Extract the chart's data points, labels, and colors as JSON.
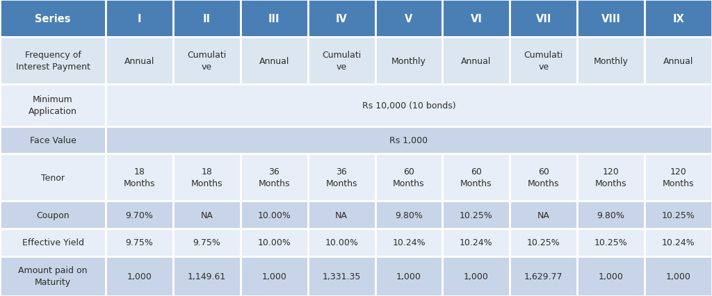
{
  "header_row": [
    "Series",
    "I",
    "II",
    "III",
    "IV",
    "V",
    "VI",
    "VII",
    "VIII",
    "IX"
  ],
  "rows": [
    {
      "label": "Frequency of\nInterest Payment",
      "values": [
        "Annual",
        "Cumulati\nve",
        "Annual",
        "Cumulati\nve",
        "Monthly",
        "Annual",
        "Cumulati\nve",
        "Monthly",
        "Annual"
      ],
      "span": false
    },
    {
      "label": "Minimum\nApplication",
      "values": [
        "Rs 10,000 (10 bonds)"
      ],
      "span": true
    },
    {
      "label": "Face Value",
      "values": [
        "Rs 1,000"
      ],
      "span": true
    },
    {
      "label": "Tenor",
      "values": [
        "18\nMonths",
        "18\nMonths",
        "36\nMonths",
        "36\nMonths",
        "60\nMonths",
        "60\nMonths",
        "60\nMonths",
        "120\nMonths",
        "120\nMonths"
      ],
      "span": false
    },
    {
      "label": "Coupon",
      "values": [
        "9.70%",
        "NA",
        "10.00%",
        "NA",
        "9.80%",
        "10.25%",
        "NA",
        "9.80%",
        "10.25%"
      ],
      "span": false
    },
    {
      "label": "Effective Yield",
      "values": [
        "9.75%",
        "9.75%",
        "10.00%",
        "10.00%",
        "10.24%",
        "10.24%",
        "10.25%",
        "10.25%",
        "10.24%"
      ],
      "span": false
    },
    {
      "label": "Amount paid on\nMaturity",
      "values": [
        "1,000",
        "1,149.61",
        "1,000",
        "1,331.35",
        "1,000",
        "1,000",
        "1,629.77",
        "1,000",
        "1,000"
      ],
      "span": false
    }
  ],
  "header_bg": "#4a7fb5",
  "header_text_color": "#ffffff",
  "row_bg": [
    "#dce6f1",
    "#e8eef7",
    "#c8d5e8",
    "#e8eef7",
    "#c8d5e8",
    "#e8eef7",
    "#c8d5e8"
  ],
  "label_text_color": "#2c2c2c",
  "value_text_color": "#2c2c2c",
  "border_color": "#ffffff",
  "font_size": 9.0,
  "header_font_size": 10.5,
  "fig_bg": "#f5f5f5"
}
